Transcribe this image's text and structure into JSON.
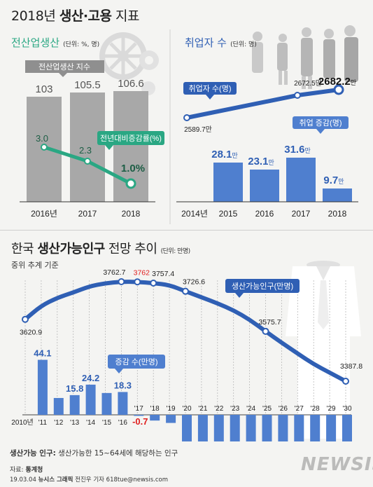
{
  "header": {
    "title_prefix": "2018년 ",
    "title_bold": "생산·고용",
    "title_suffix": " 지표"
  },
  "production": {
    "subtitle": "전산업생산",
    "unit": "(단위: %, 명)",
    "legend_index": "전산업생산 지수",
    "legend_rate": "전년대비증감률(%)",
    "years": [
      "2016년",
      "2017",
      "2018"
    ],
    "index_values": [
      103,
      105.5,
      106.6
    ],
    "index_labels": [
      "103",
      "105.5",
      "106.6"
    ],
    "rate_values": [
      3.0,
      2.3,
      1.0
    ],
    "rate_labels": [
      "3.0",
      "2.3",
      "1.0%"
    ]
  },
  "employment": {
    "subtitle": "취업자 수",
    "unit": "(단위: 명)",
    "legend_count": "취업자 수(명)",
    "legend_change": "취업 증감(명)",
    "years": [
      "2014년",
      "2015",
      "2016",
      "2017",
      "2018"
    ],
    "count_values": [
      2589.7,
      2672.5,
      2682.2
    ],
    "count_labels": [
      "2589.7만",
      "2672.5만",
      "2682.2"
    ],
    "count_suffix": "만",
    "change_values": [
      28.1,
      23.1,
      31.6,
      9.7
    ],
    "change_labels": [
      "28.1",
      "23.1",
      "31.6",
      "9.7"
    ],
    "change_suffix": "만"
  },
  "population": {
    "title_prefix": "한국 ",
    "title_bold": "생산가능인구",
    "title_suffix": " 전망 추이",
    "unit": "(단위: 만명)",
    "subtitle": "중위 추계 기준",
    "legend_pop": "생산가능인구(만명)",
    "legend_change": "증감 수(만명)",
    "footnote_bold": "생산가능 인구:",
    "footnote_rest": " 생산가능한 15~64세에 해당하는 인구"
  },
  "chart_data": [
    {
      "type": "bar",
      "title": "전산업생산",
      "categories": [
        "2016년",
        "2017",
        "2018"
      ],
      "series": [
        {
          "name": "전산업생산 지수",
          "values": [
            103,
            105.5,
            106.6
          ]
        },
        {
          "name": "전년대비증감률(%)",
          "values": [
            3.0,
            2.3,
            1.0
          ]
        }
      ]
    },
    {
      "type": "bar",
      "title": "취업자 수",
      "categories": [
        "2014년",
        "2015",
        "2016",
        "2017",
        "2018"
      ],
      "series": [
        {
          "name": "취업자 수(명)",
          "values": [
            2589.7,
            null,
            null,
            2672.5,
            2682.2
          ]
        },
        {
          "name": "취업 증감(명)",
          "values": [
            null,
            28.1,
            23.1,
            31.6,
            9.7
          ]
        }
      ]
    },
    {
      "type": "line",
      "title": "한국 생산가능인구 전망 추이",
      "categories": [
        "2010년",
        "'11",
        "'12",
        "'13",
        "'14",
        "'15",
        "'16",
        "'17",
        "'18",
        "'19",
        "'20",
        "'21",
        "'22",
        "'23",
        "'24",
        "'25",
        "'26",
        "'27",
        "'28",
        "'29",
        "'30"
      ],
      "series": [
        {
          "name": "생산가능인구(만명)",
          "values": [
            3620.9,
            null,
            null,
            null,
            null,
            null,
            3762.7,
            3762,
            3757.4,
            null,
            3726.6,
            null,
            null,
            null,
            null,
            3575.7,
            null,
            null,
            null,
            null,
            3387.8
          ]
        },
        {
          "name": "증감 수(만명)",
          "values": [
            null,
            44.1,
            null,
            15.8,
            24.2,
            null,
            18.3,
            -0.7,
            null,
            null,
            -24.0,
            null,
            null,
            null,
            null,
            -42.5,
            -43.7,
            null,
            null,
            null,
            -38.8
          ]
        }
      ]
    }
  ],
  "pop_chart": {
    "x_labels": [
      "2010년",
      "'11",
      "'12",
      "'13",
      "'14",
      "'15",
      "'16",
      "'17",
      "'18",
      "'19",
      "'20",
      "'21",
      "'22",
      "'23",
      "'24",
      "'25",
      "'26",
      "'27",
      "'28",
      "'29",
      "'30"
    ],
    "bars": [
      {
        "i": 1,
        "v": 44.1,
        "label": "44.1"
      },
      {
        "i": 2,
        "v": 13.5,
        "label": ""
      },
      {
        "i": 3,
        "v": 15.8,
        "label": "15.8"
      },
      {
        "i": 4,
        "v": 24.2,
        "label": "24.2"
      },
      {
        "i": 5,
        "v": 17.5,
        "label": ""
      },
      {
        "i": 6,
        "v": 18.3,
        "label": "18.3"
      },
      {
        "i": 7,
        "v": -0.7,
        "label": "-0.7"
      },
      {
        "i": 8,
        "v": -4.6,
        "label": ""
      },
      {
        "i": 9,
        "v": -6.5,
        "label": ""
      },
      {
        "i": 10,
        "v": -24.0,
        "label": "-24.0"
      },
      {
        "i": 11,
        "v": -23.5,
        "label": ""
      },
      {
        "i": 12,
        "v": -29.0,
        "label": ""
      },
      {
        "i": 13,
        "v": -30.5,
        "label": ""
      },
      {
        "i": 14,
        "v": -34.0,
        "label": ""
      },
      {
        "i": 15,
        "v": -42.5,
        "label": "−42.5"
      },
      {
        "i": 16,
        "v": -43.7,
        "label": "−43.7"
      },
      {
        "i": 17,
        "v": -44.0,
        "label": ""
      },
      {
        "i": 18,
        "v": -44.5,
        "label": ""
      },
      {
        "i": 19,
        "v": -40.0,
        "label": ""
      },
      {
        "i": 20,
        "v": -38.8,
        "label": "−38.8"
      }
    ],
    "line_points": [
      {
        "i": 0,
        "v": 3620.9,
        "label": "3620.9"
      },
      {
        "i": 1,
        "v": 3672
      },
      {
        "i": 2,
        "v": 3702
      },
      {
        "i": 3,
        "v": 3722
      },
      {
        "i": 4,
        "v": 3745
      },
      {
        "i": 5,
        "v": 3757
      },
      {
        "i": 6,
        "v": 3762.7,
        "label": "3762.7"
      },
      {
        "i": 7,
        "v": 3762,
        "label": "3762"
      },
      {
        "i": 8,
        "v": 3757.4,
        "label": "3757.4"
      },
      {
        "i": 9,
        "v": 3750
      },
      {
        "i": 10,
        "v": 3726.6,
        "label": "3726.6"
      },
      {
        "i": 11,
        "v": 3704
      },
      {
        "i": 12,
        "v": 3681
      },
      {
        "i": 13,
        "v": 3655
      },
      {
        "i": 14,
        "v": 3620
      },
      {
        "i": 15,
        "v": 3575.7,
        "label": "3575.7"
      },
      {
        "i": 16,
        "v": 3533
      },
      {
        "i": 17,
        "v": 3492
      },
      {
        "i": 18,
        "v": 3452
      },
      {
        "i": 19,
        "v": 3420
      },
      {
        "i": 20,
        "v": 3387.8,
        "label": "3387.8"
      }
    ]
  },
  "footer": {
    "source_label": "자료: ",
    "source_value": "통계청",
    "credit_date": "19.03.04 ",
    "credit_bold": "뉴시스 그래픽",
    "credit_rest": " 전진우 기자 618tue@newsis.com",
    "watermark": "NEWSIS"
  },
  "colors": {
    "green": "#2aa783",
    "blue": "#2f5fb4",
    "bar_blue": "#4f7fcf",
    "gray_bar": "#a8a8a8",
    "red": "#e02020"
  }
}
